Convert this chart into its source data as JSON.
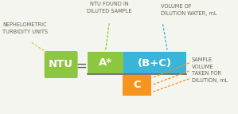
{
  "bg_color": "#f5f5f0",
  "ntu_box_color": "#8dc63f",
  "ntu_text": "NTU",
  "equals_text": "=",
  "A_color": "#8dc63f",
  "BC_color": "#3ab4d8",
  "C_color": "#f7941d",
  "fraction_line_color": "#666666",
  "label_nephelometric": "NEPHELOMETRIC\nTURBIDITY UNITS",
  "label_ntu_found": "NTU FOUND IN\nDILUTED SAMPLE",
  "label_volume_dilution": "VOLUME OF\nDILUTION WATER, mL",
  "label_sample_volume": "SAMPLE\nVOLUME\nTAKEN FOR\nDILUTION, mL",
  "label_color": "#666655",
  "dot_yellow": "#c8d83a",
  "dot_green": "#8dc63f",
  "dot_blue": "#3ab4d8",
  "dot_orange": "#f7941d",
  "white": "#ffffff"
}
